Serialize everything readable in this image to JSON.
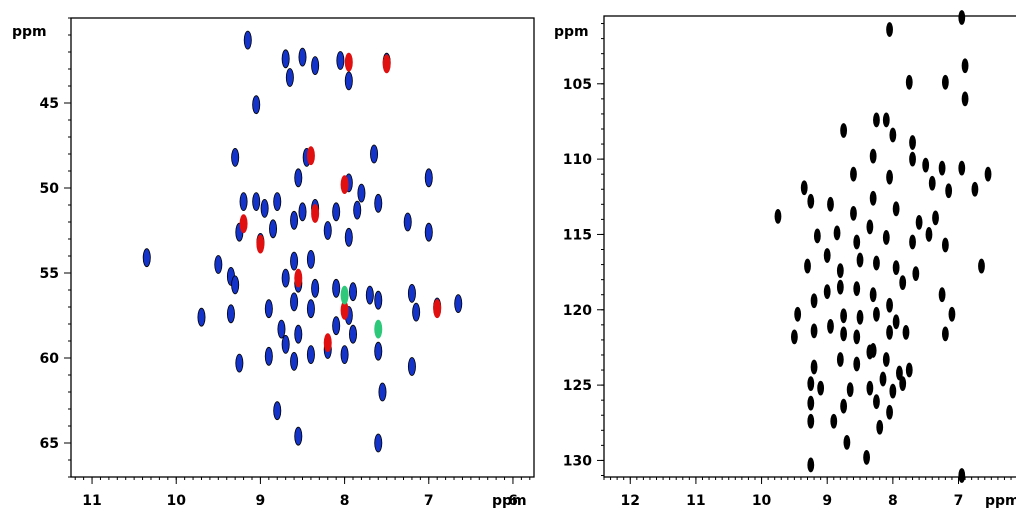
{
  "chart_data": [
    {
      "type": "scatter",
      "title": "",
      "y_unit_label": "ppm",
      "x_unit_label": "ppm",
      "xlim": [
        11.25,
        5.75
      ],
      "ylim": [
        40,
        67
      ],
      "x_ticks": [
        {
          "value": 11,
          "label": "11"
        },
        {
          "value": 10,
          "label": "10"
        },
        {
          "value": 9,
          "label": "9"
        },
        {
          "value": 8,
          "label": "8"
        },
        {
          "value": 7,
          "label": "7"
        },
        {
          "value": 6,
          "label": "6"
        }
      ],
      "y_ticks": [
        {
          "value": 45,
          "label": "45"
        },
        {
          "value": 50,
          "label": "50"
        },
        {
          "value": 55,
          "label": "55"
        },
        {
          "value": 60,
          "label": "60"
        },
        {
          "value": 65,
          "label": "65"
        }
      ],
      "colors": {
        "blue": "#1433c8",
        "red": "#e01010",
        "green": "#2ec87a",
        "outline": "#000000"
      },
      "series": [
        {
          "color_key": "blue",
          "peaks": [
            [
              9.15,
              41.3
            ],
            [
              8.7,
              42.4
            ],
            [
              8.5,
              42.3
            ],
            [
              8.35,
              42.8
            ],
            [
              8.05,
              42.5
            ],
            [
              7.5,
              42.6
            ],
            [
              8.65,
              43.5
            ],
            [
              7.95,
              43.7
            ],
            [
              9.05,
              45.1
            ],
            [
              9.3,
              48.2
            ],
            [
              8.45,
              48.2
            ],
            [
              7.65,
              48
            ],
            [
              8.55,
              49.4
            ],
            [
              7.95,
              49.7
            ],
            [
              7.8,
              50.3
            ],
            [
              7.0,
              49.4
            ],
            [
              9.2,
              50.8
            ],
            [
              9.05,
              50.8
            ],
            [
              8.95,
              51.2
            ],
            [
              8.8,
              50.8
            ],
            [
              8.5,
              51.4
            ],
            [
              8.35,
              51.2
            ],
            [
              8.1,
              51.4
            ],
            [
              7.85,
              51.3
            ],
            [
              7.6,
              50.9
            ],
            [
              9.25,
              52.6
            ],
            [
              8.85,
              52.4
            ],
            [
              8.6,
              51.9
            ],
            [
              8.2,
              52.5
            ],
            [
              7.95,
              52.9
            ],
            [
              7.25,
              52.0
            ],
            [
              7.0,
              52.6
            ],
            [
              9.5,
              54.5
            ],
            [
              9.35,
              55.2
            ],
            [
              9.0,
              53.2
            ],
            [
              8.6,
              54.3
            ],
            [
              8.4,
              54.2
            ],
            [
              10.35,
              54.1
            ],
            [
              9.3,
              55.7
            ],
            [
              8.7,
              55.3
            ],
            [
              8.55,
              55.6
            ],
            [
              8.35,
              55.9
            ],
            [
              8.1,
              55.9
            ],
            [
              7.9,
              56.1
            ],
            [
              7.7,
              56.3
            ],
            [
              9.7,
              57.6
            ],
            [
              9.35,
              57.4
            ],
            [
              8.9,
              57.1
            ],
            [
              8.6,
              56.7
            ],
            [
              8.4,
              57.1
            ],
            [
              7.95,
              57.5
            ],
            [
              7.6,
              56.6
            ],
            [
              7.2,
              56.2
            ],
            [
              7.15,
              57.3
            ],
            [
              6.9,
              57.0
            ],
            [
              6.65,
              56.8
            ],
            [
              8.75,
              58.3
            ],
            [
              8.55,
              58.6
            ],
            [
              8.1,
              58.1
            ],
            [
              7.9,
              58.6
            ],
            [
              8.7,
              59.2
            ],
            [
              8.4,
              59.8
            ],
            [
              8.2,
              59.5
            ],
            [
              8.0,
              59.8
            ],
            [
              9.25,
              60.3
            ],
            [
              8.9,
              59.9
            ],
            [
              8.6,
              60.2
            ],
            [
              7.6,
              59.6
            ],
            [
              7.2,
              60.5
            ],
            [
              7.55,
              62
            ],
            [
              8.8,
              63.1
            ],
            [
              8.55,
              64.6
            ],
            [
              7.6,
              65
            ]
          ]
        },
        {
          "color_key": "red",
          "peaks": [
            [
              7.95,
              42.6
            ],
            [
              7.5,
              42.7
            ],
            [
              8.4,
              48.1
            ],
            [
              8.0,
              49.8
            ],
            [
              8.35,
              51.5
            ],
            [
              9.2,
              52.1
            ],
            [
              9.0,
              53.3
            ],
            [
              8.55,
              55.3
            ],
            [
              8.0,
              57.2
            ],
            [
              6.9,
              57.1
            ],
            [
              8.2,
              59.1
            ]
          ]
        },
        {
          "color_key": "green",
          "peaks": [
            [
              8.0,
              56.3
            ],
            [
              7.6,
              58.3
            ]
          ]
        }
      ]
    },
    {
      "type": "scatter",
      "title": "",
      "y_unit_label": "ppm",
      "x_unit_label": "ppm",
      "xlim": [
        12.4,
        5.85
      ],
      "ylim": [
        100.5,
        131.1
      ],
      "x_ticks": [
        {
          "value": 12,
          "label": "12"
        },
        {
          "value": 11,
          "label": "11"
        },
        {
          "value": 10,
          "label": "10"
        },
        {
          "value": 9,
          "label": "9"
        },
        {
          "value": 8,
          "label": "8"
        },
        {
          "value": 7,
          "label": "7"
        }
      ],
      "y_ticks": [
        {
          "value": 105,
          "label": "105"
        },
        {
          "value": 110,
          "label": "110"
        },
        {
          "value": 115,
          "label": "115"
        },
        {
          "value": 120,
          "label": "120"
        },
        {
          "value": 125,
          "label": "125"
        },
        {
          "value": 130,
          "label": "130"
        }
      ],
      "colors": {
        "fill": "#000000"
      },
      "series": [
        {
          "color_key": "fill",
          "peaks": [
            [
              8.05,
              101.4
            ],
            [
              6.95,
              100.6
            ],
            [
              6.9,
              103.8
            ],
            [
              7.2,
              104.9
            ],
            [
              7.75,
              104.9
            ],
            [
              6.9,
              106
            ],
            [
              8.25,
              107.4
            ],
            [
              8.75,
              108.1
            ],
            [
              8.1,
              107.4
            ],
            [
              8.0,
              108.4
            ],
            [
              7.7,
              108.9
            ],
            [
              8.3,
              109.8
            ],
            [
              7.7,
              110
            ],
            [
              7.5,
              110.4
            ],
            [
              7.25,
              110.6
            ],
            [
              6.95,
              110.6
            ],
            [
              9.35,
              111.9
            ],
            [
              9.25,
              112.8
            ],
            [
              8.6,
              111
            ],
            [
              8.05,
              111.2
            ],
            [
              7.4,
              111.6
            ],
            [
              7.15,
              112.1
            ],
            [
              6.75,
              112
            ],
            [
              6.55,
              111
            ],
            [
              9.75,
              113.8
            ],
            [
              8.95,
              113
            ],
            [
              8.6,
              113.6
            ],
            [
              8.3,
              112.6
            ],
            [
              7.95,
              113.3
            ],
            [
              7.6,
              114.2
            ],
            [
              7.35,
              113.9
            ],
            [
              9.15,
              115.1
            ],
            [
              8.85,
              114.9
            ],
            [
              8.55,
              115.5
            ],
            [
              8.35,
              114.5
            ],
            [
              8.1,
              115.2
            ],
            [
              7.7,
              115.5
            ],
            [
              7.45,
              115
            ],
            [
              7.2,
              115.7
            ],
            [
              9.3,
              117.1
            ],
            [
              9.0,
              116.4
            ],
            [
              8.8,
              117.4
            ],
            [
              8.5,
              116.7
            ],
            [
              8.25,
              116.9
            ],
            [
              7.95,
              117.2
            ],
            [
              7.65,
              117.6
            ],
            [
              6.65,
              117.1
            ],
            [
              9.0,
              118.8
            ],
            [
              8.8,
              118.5
            ],
            [
              8.55,
              118.6
            ],
            [
              8.3,
              119
            ],
            [
              8.05,
              119.7
            ],
            [
              7.85,
              118.2
            ],
            [
              7.25,
              119
            ],
            [
              9.2,
              119.4
            ],
            [
              9.45,
              120.3
            ],
            [
              8.75,
              120.4
            ],
            [
              8.5,
              120.5
            ],
            [
              8.25,
              120.3
            ],
            [
              7.95,
              120.8
            ],
            [
              7.1,
              120.3
            ],
            [
              9.5,
              121.8
            ],
            [
              9.2,
              121.4
            ],
            [
              8.95,
              121.1
            ],
            [
              8.75,
              121.6
            ],
            [
              8.55,
              121.8
            ],
            [
              8.3,
              122.7
            ],
            [
              8.05,
              121.5
            ],
            [
              7.8,
              121.5
            ],
            [
              7.2,
              121.6
            ],
            [
              9.2,
              123.8
            ],
            [
              8.8,
              123.3
            ],
            [
              8.55,
              123.6
            ],
            [
              8.35,
              122.8
            ],
            [
              8.1,
              123.3
            ],
            [
              7.9,
              124.2
            ],
            [
              7.75,
              124
            ],
            [
              9.25,
              124.9
            ],
            [
              9.1,
              125.2
            ],
            [
              8.65,
              125.3
            ],
            [
              8.35,
              125.2
            ],
            [
              8.15,
              124.6
            ],
            [
              8.0,
              125.4
            ],
            [
              7.85,
              124.9
            ],
            [
              9.25,
              126.2
            ],
            [
              8.75,
              126.4
            ],
            [
              8.25,
              126.1
            ],
            [
              8.05,
              126.8
            ],
            [
              8.9,
              127.4
            ],
            [
              8.2,
              127.8
            ],
            [
              9.25,
              127.4
            ],
            [
              8.7,
              128.8
            ],
            [
              9.25,
              130.3
            ],
            [
              8.4,
              129.8
            ],
            [
              6.95,
              131
            ]
          ]
        }
      ]
    }
  ]
}
